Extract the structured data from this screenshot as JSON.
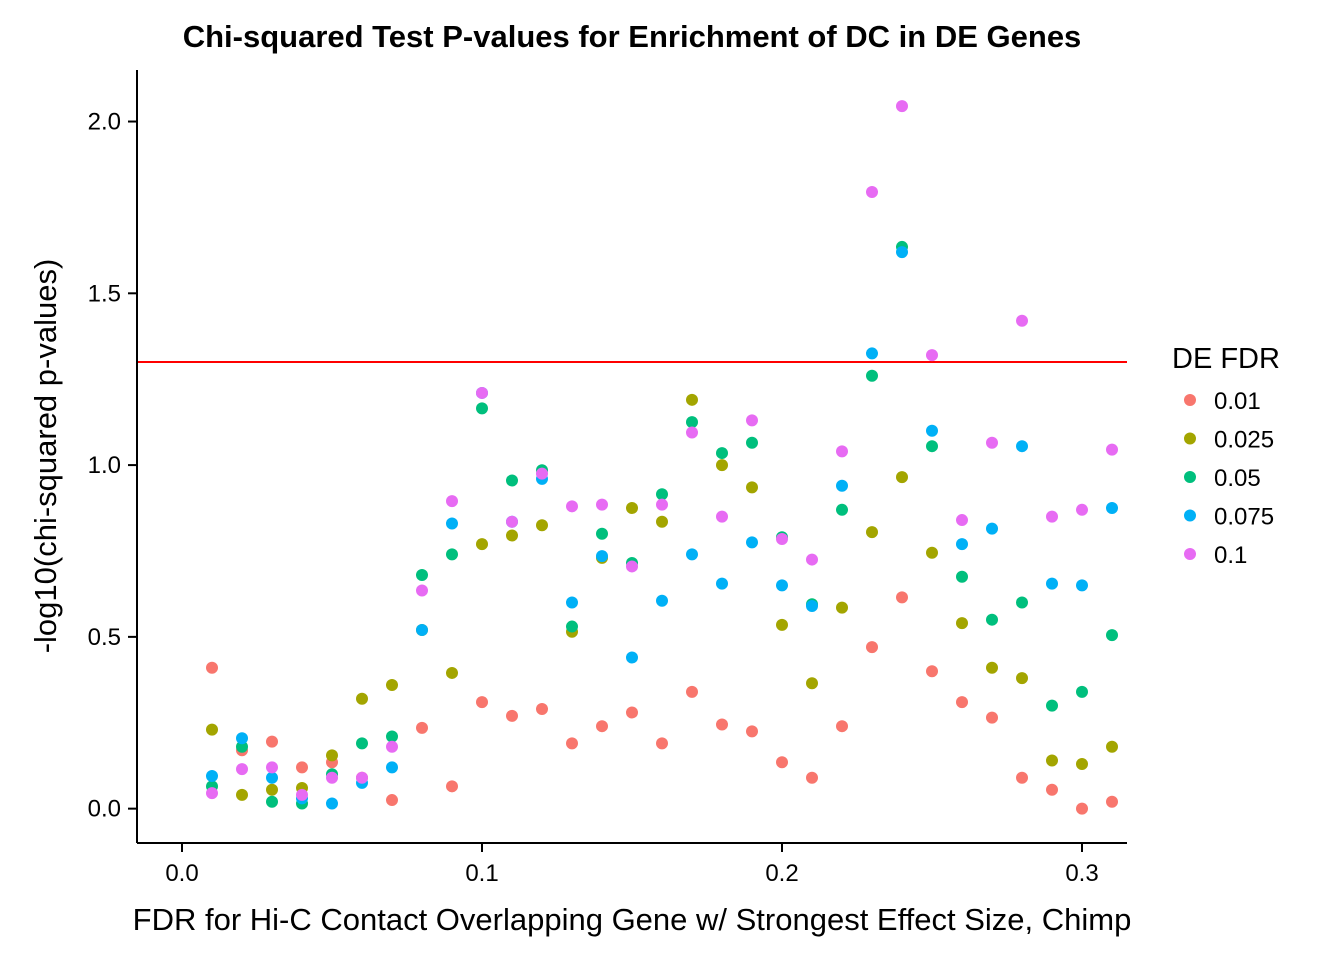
{
  "chart_data": {
    "type": "scatter",
    "title": "Chi-squared Test P-values for Enrichment of DC in DE Genes",
    "xlabel": "FDR for Hi-C Contact Overlapping Gene w/ Strongest Effect Size, Chimp",
    "ylabel": "-log10(chi-squared p-values)",
    "xlim": [
      -0.015,
      0.315
    ],
    "ylim": [
      -0.1,
      2.15
    ],
    "x_ticks": [
      0.0,
      0.1,
      0.2,
      0.3
    ],
    "x_tick_labels": [
      "0.0",
      "0.1",
      "0.2",
      "0.3"
    ],
    "y_ticks": [
      0.0,
      0.5,
      1.0,
      1.5,
      2.0
    ],
    "y_tick_labels": [
      "0.0",
      "0.5",
      "1.0",
      "1.5",
      "2.0"
    ],
    "grid": false,
    "legend_position": "right",
    "legend_title": "DE FDR",
    "reference_line": {
      "y": 1.3,
      "color": "#ff0000"
    },
    "x": [
      0.01,
      0.02,
      0.03,
      0.04,
      0.05,
      0.06,
      0.07,
      0.08,
      0.09,
      0.1,
      0.11,
      0.12,
      0.13,
      0.14,
      0.15,
      0.16,
      0.17,
      0.18,
      0.19,
      0.2,
      0.21,
      0.22,
      0.23,
      0.24,
      0.25,
      0.26,
      0.27,
      0.28,
      0.29,
      0.3,
      0.31
    ],
    "series": [
      {
        "name": "0.01",
        "color": "#F8766D",
        "values": [
          0.41,
          0.17,
          0.195,
          0.12,
          0.135,
          0.09,
          0.025,
          0.235,
          0.065,
          0.31,
          0.27,
          0.29,
          0.19,
          0.24,
          0.28,
          0.19,
          0.34,
          0.245,
          0.225,
          0.135,
          0.09,
          0.24,
          0.47,
          0.615,
          0.4,
          0.31,
          0.265,
          0.09,
          0.055,
          0.0,
          0.02
        ]
      },
      {
        "name": "0.025",
        "color": "#A3A500",
        "values": [
          0.23,
          0.04,
          0.055,
          0.06,
          0.155,
          0.32,
          0.36,
          0.52,
          0.395,
          0.77,
          0.795,
          0.825,
          0.515,
          0.73,
          0.875,
          0.835,
          1.19,
          1.0,
          0.935,
          0.535,
          0.365,
          0.585,
          0.805,
          0.965,
          0.745,
          0.54,
          0.41,
          0.38,
          0.14,
          0.13,
          0.18
        ]
      },
      {
        "name": "0.05",
        "color": "#00BF7D",
        "values": [
          0.065,
          0.18,
          0.02,
          0.015,
          0.1,
          0.19,
          0.21,
          0.68,
          0.74,
          1.165,
          0.955,
          0.985,
          0.53,
          0.8,
          0.715,
          0.915,
          1.125,
          1.035,
          1.065,
          0.79,
          0.595,
          0.87,
          1.26,
          1.635,
          1.055,
          0.675,
          0.55,
          0.6,
          0.3,
          0.34,
          0.505
        ]
      },
      {
        "name": "0.075",
        "color": "#00B0F6",
        "values": [
          0.095,
          0.205,
          0.09,
          0.03,
          0.015,
          0.075,
          0.12,
          0.52,
          0.83,
          1.21,
          0.835,
          0.96,
          0.6,
          0.735,
          0.44,
          0.605,
          0.74,
          0.655,
          0.775,
          0.65,
          0.59,
          0.94,
          1.325,
          1.62,
          1.1,
          0.77,
          0.815,
          1.055,
          0.655,
          0.65,
          0.875
        ]
      },
      {
        "name": "0.1",
        "color": "#E76BF3",
        "values": [
          0.045,
          0.115,
          0.12,
          0.04,
          0.09,
          0.09,
          0.18,
          0.635,
          0.895,
          1.21,
          0.835,
          0.975,
          0.88,
          0.885,
          0.705,
          0.885,
          1.095,
          0.85,
          1.13,
          0.785,
          0.725,
          1.04,
          1.795,
          2.045,
          1.32,
          0.84,
          1.065,
          1.42,
          0.85,
          0.87,
          1.045
        ]
      }
    ]
  }
}
